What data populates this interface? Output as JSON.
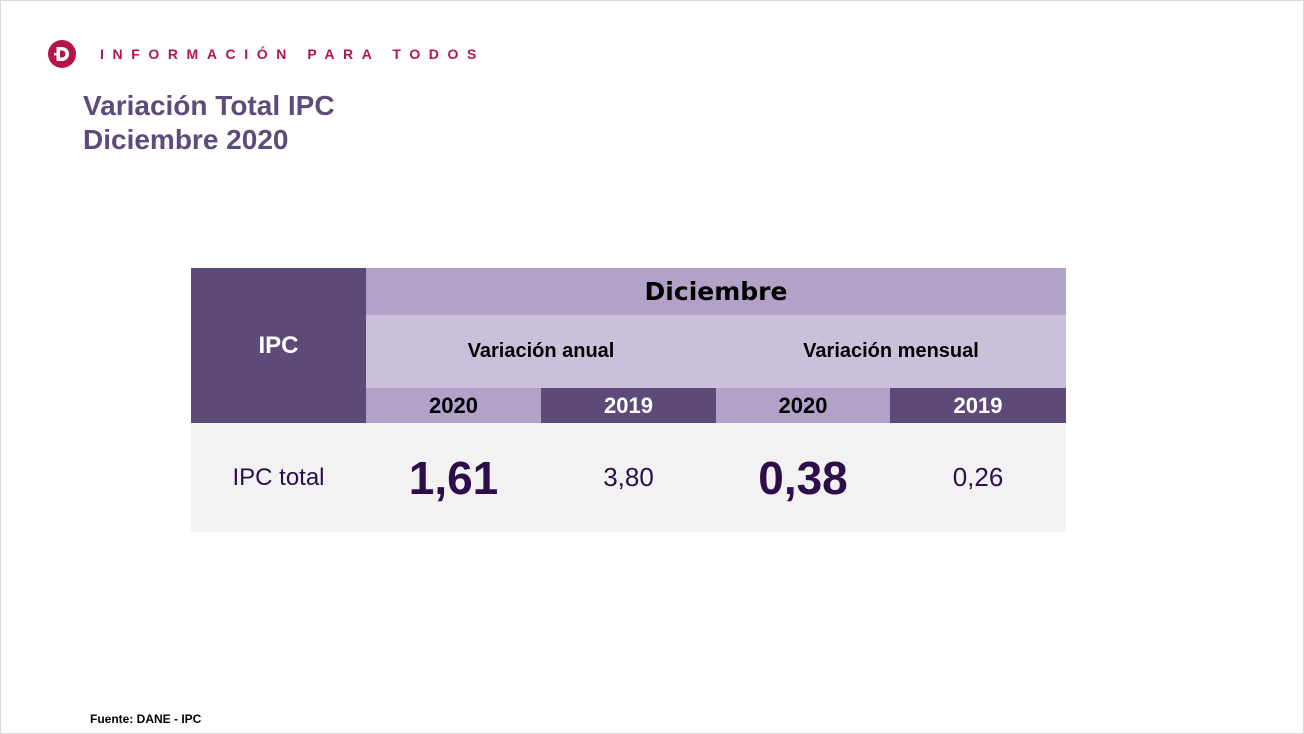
{
  "header": {
    "logo_icon": "dane-d-logo-icon",
    "tagline": "INFORMACIÓN PARA TODOS",
    "accent_color": "#b5134b"
  },
  "title": {
    "line1": "Variación Total IPC",
    "line2": "Diciembre 2020",
    "color": "#5f4b7a"
  },
  "table": {
    "row_header": "IPC",
    "group_header": "Diciembre",
    "sub_headers": [
      "Variación anual",
      "Variación mensual"
    ],
    "years": [
      "2020",
      "2019",
      "2020",
      "2019"
    ],
    "row": {
      "label": "IPC total",
      "values": [
        "1,61",
        "3,80",
        "0,38",
        "0,26"
      ]
    },
    "colors": {
      "dark": "#5e4a79",
      "medium": "#b2a1c8",
      "light": "#cac0da",
      "body": "#f2f2f2",
      "value_text": "#2c0e4a"
    }
  },
  "footer": {
    "source": "Fuente: DANE - IPC"
  }
}
